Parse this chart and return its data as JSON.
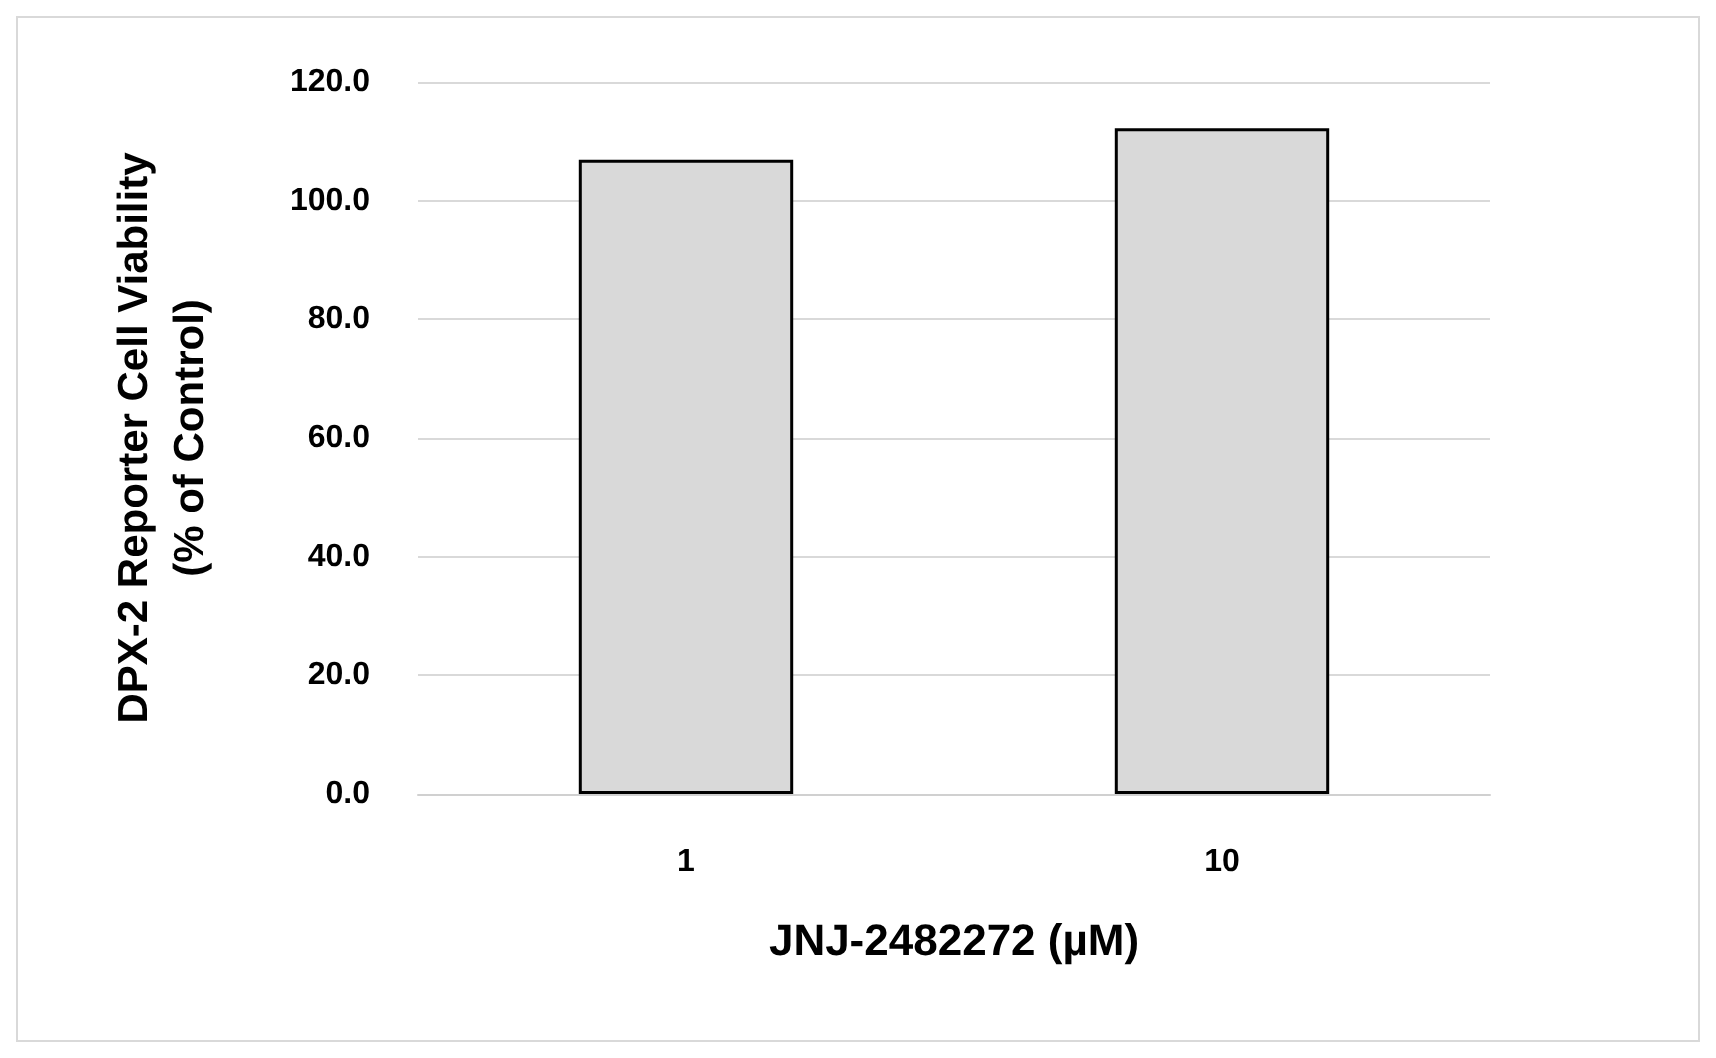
{
  "chart_data": {
    "type": "bar",
    "xlabel": "JNJ-2482272 (µM)",
    "ylabel": "DPX-2 Reporter Cell Viability\n(% of Control)",
    "categories": [
      "1",
      "10"
    ],
    "values": [
      106.9,
      112.2
    ],
    "color": "#d9d9d9",
    "ylim": [
      0,
      120
    ],
    "yticks": [
      {
        "value": 0,
        "label": "0.0"
      },
      {
        "value": 20,
        "label": "20.0"
      },
      {
        "value": 40,
        "label": "40.0"
      },
      {
        "value": 60,
        "label": "60.0"
      },
      {
        "value": 80,
        "label": "80.0"
      },
      {
        "value": 100,
        "label": "100.0"
      },
      {
        "value": 120,
        "label": "120.0"
      }
    ],
    "grid": "y"
  }
}
